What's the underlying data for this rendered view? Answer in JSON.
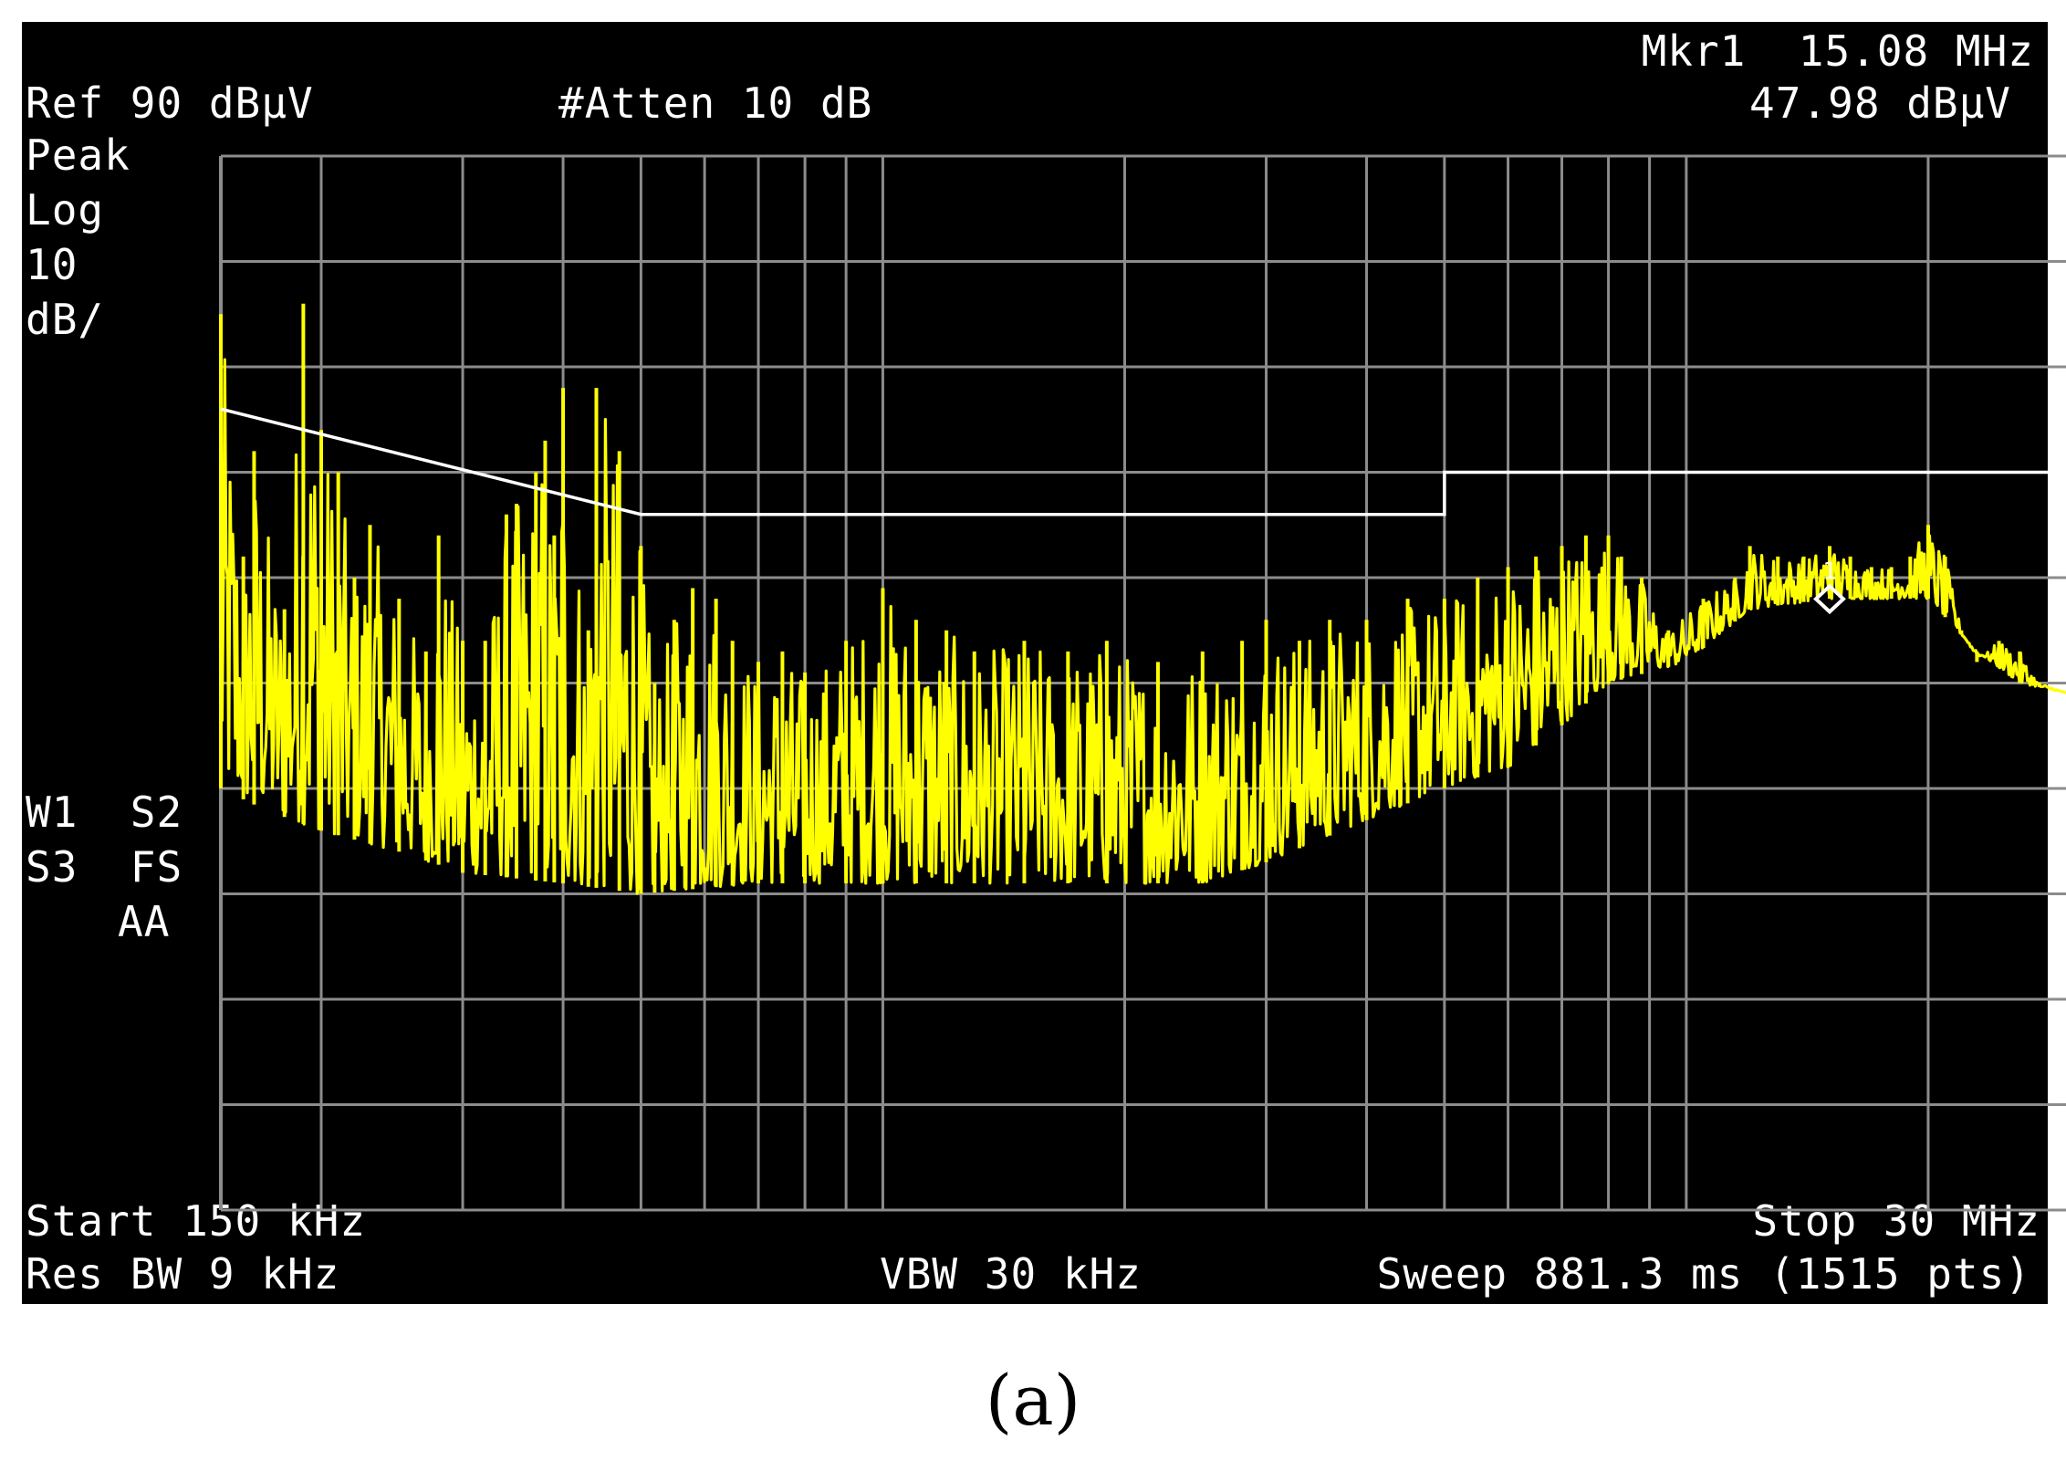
{
  "header": {
    "ref_level": "Ref 90 dBµV",
    "attenuation": "#Atten 10 dB",
    "marker_label": "Mkr1  15.08 MHz",
    "marker_amplitude": "47.98 dBµV"
  },
  "left_panel": {
    "detector": "Peak",
    "scale_type": "Log",
    "scale_value": "10",
    "scale_unit": "dB/",
    "trace_flags_1": "W1  S2",
    "trace_flags_2": "S3  FS",
    "trace_flags_3": "AA"
  },
  "footer": {
    "start": "Start 150 kHz",
    "stop": "Stop 30 MHz",
    "res_bw": "Res BW 9 kHz",
    "vbw": "VBW 30 kHz",
    "sweep": "Sweep 881.3 ms (1515 pts)"
  },
  "caption": "(a)",
  "marker": {
    "number": "1",
    "frequency_mhz": 15.08,
    "amplitude_dbuv": 47.98
  },
  "colors": {
    "background": "#000000",
    "grid": "#8c8c8c",
    "trace": "#ffff00",
    "limit_line": "#ffffff",
    "text": "#ffffff"
  },
  "chart_data": {
    "type": "line",
    "x_scale": "log",
    "xlim": [
      0.15,
      30
    ],
    "ylim": [
      -10,
      90
    ],
    "grid_y_step": 10,
    "x_unit": "MHz",
    "y_unit": "dBµV",
    "limit_line": {
      "x": [
        0.15,
        0.5,
        0.5,
        5,
        5,
        30
      ],
      "y": [
        66,
        56,
        56,
        56,
        60,
        60
      ]
    },
    "series": [
      {
        "peaks": [
          [
            0.15,
            75
          ],
          [
            0.16,
            52
          ],
          [
            0.165,
            62
          ],
          [
            0.18,
            47
          ],
          [
            0.19,
            76
          ],
          [
            0.2,
            64
          ],
          [
            0.21,
            60
          ],
          [
            0.22,
            50
          ],
          [
            0.23,
            55
          ],
          [
            0.25,
            48
          ],
          [
            0.27,
            43
          ],
          [
            0.28,
            54
          ],
          [
            0.3,
            44
          ],
          [
            0.32,
            44
          ],
          [
            0.34,
            56
          ],
          [
            0.35,
            57
          ],
          [
            0.37,
            60
          ],
          [
            0.38,
            63
          ],
          [
            0.39,
            54
          ],
          [
            0.4,
            68
          ],
          [
            0.43,
            45
          ],
          [
            0.44,
            68
          ],
          [
            0.47,
            62
          ],
          [
            0.5,
            53
          ],
          [
            0.52,
            40
          ],
          [
            0.55,
            46
          ],
          [
            0.58,
            49
          ],
          [
            0.62,
            48
          ],
          [
            0.65,
            44
          ],
          [
            0.7,
            42
          ],
          [
            0.75,
            43
          ],
          [
            0.8,
            41
          ],
          [
            0.9,
            44
          ],
          [
            1.0,
            49
          ],
          [
            1.1,
            46
          ],
          [
            1.2,
            45
          ],
          [
            1.3,
            43
          ],
          [
            1.5,
            44
          ],
          [
            1.7,
            43
          ],
          [
            1.9,
            44
          ],
          [
            2.2,
            42
          ],
          [
            2.5,
            43
          ],
          [
            2.8,
            44
          ],
          [
            3.0,
            46
          ],
          [
            3.3,
            44
          ],
          [
            3.6,
            46
          ],
          [
            4.0,
            46
          ],
          [
            4.5,
            48
          ],
          [
            5.0,
            48
          ],
          [
            5.5,
            50
          ],
          [
            6.0,
            51
          ],
          [
            6.5,
            52
          ],
          [
            7.0,
            53
          ],
          [
            7.5,
            54
          ],
          [
            8.0,
            54
          ],
          [
            8.3,
            52
          ],
          [
            8.8,
            50
          ],
          [
            9.5,
            45
          ],
          [
            10.5,
            48
          ],
          [
            11.5,
            50
          ],
          [
            12.0,
            53
          ],
          [
            13.0,
            52
          ],
          [
            14.0,
            52
          ],
          [
            15.08,
            53
          ],
          [
            16.0,
            52
          ],
          [
            17.0,
            51
          ],
          [
            18.0,
            51
          ],
          [
            19.0,
            52
          ],
          [
            20.0,
            55
          ],
          [
            21.0,
            52
          ],
          [
            22.0,
            45
          ],
          [
            23.0,
            42
          ],
          [
            24.5,
            44
          ],
          [
            26.0,
            43
          ],
          [
            27.5,
            40
          ],
          [
            30.0,
            39
          ]
        ],
        "floors": [
          [
            0.15,
            30
          ],
          [
            0.17,
            28
          ],
          [
            0.2,
            26
          ],
          [
            0.25,
            24
          ],
          [
            0.3,
            22
          ],
          [
            0.4,
            21
          ],
          [
            0.5,
            20
          ],
          [
            0.7,
            21
          ],
          [
            1.0,
            21
          ],
          [
            1.5,
            21
          ],
          [
            2.0,
            21
          ],
          [
            2.5,
            21
          ],
          [
            3.0,
            23
          ],
          [
            4.0,
            27
          ],
          [
            5.0,
            30
          ],
          [
            6.0,
            32
          ],
          [
            7.0,
            36
          ],
          [
            8.0,
            40
          ],
          [
            10.0,
            42
          ],
          [
            12.0,
            47
          ],
          [
            15.0,
            48
          ],
          [
            20.0,
            48
          ],
          [
            23.0,
            43
          ],
          [
            26.0,
            40
          ],
          [
            30.0,
            39
          ]
        ]
      }
    ]
  }
}
